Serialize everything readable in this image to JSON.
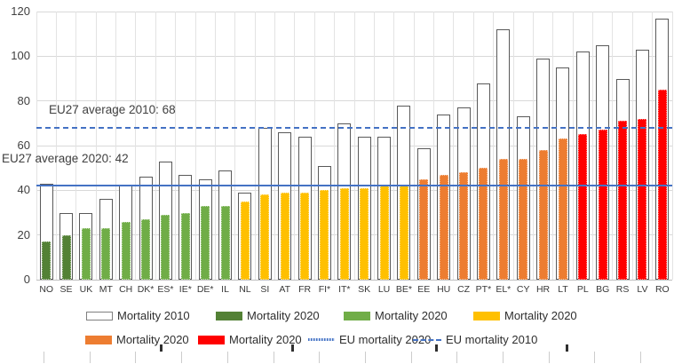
{
  "chart_data": {
    "type": "bar",
    "title": "",
    "categories": [
      "NO",
      "SE",
      "UK",
      "MT",
      "CH",
      "DK*",
      "ES*",
      "IE*",
      "DE*",
      "IL",
      "NL",
      "SI",
      "AT",
      "FR",
      "FI*",
      "IT*",
      "SK",
      "LU",
      "BE*",
      "EE",
      "HU",
      "CZ",
      "PT*",
      "EL*",
      "CY",
      "HR",
      "LT",
      "PL",
      "BG",
      "RS",
      "LV",
      "RO"
    ],
    "series": [
      {
        "name": "Mortality 2010",
        "style": "outline",
        "values": [
          43,
          30,
          30,
          36,
          42,
          46,
          53,
          47,
          45,
          49,
          39,
          68,
          66,
          64,
          51,
          70,
          64,
          64,
          78,
          59,
          74,
          77,
          88,
          112,
          73,
          99,
          95,
          102,
          105,
          90,
          103,
          117
        ]
      },
      {
        "name": "Mortality 2020",
        "style": "filled",
        "values": [
          17,
          20,
          23,
          23,
          26,
          27,
          29,
          30,
          33,
          33,
          35,
          38,
          39,
          39,
          40,
          41,
          41,
          42,
          42,
          45,
          47,
          48,
          50,
          54,
          54,
          58,
          63,
          65,
          67,
          71,
          72,
          85
        ],
        "color_group_per_bar": [
          "darkgreen",
          "darkgreen",
          "green",
          "green",
          "green",
          "green",
          "green",
          "green",
          "green",
          "green",
          "yellow",
          "yellow",
          "yellow",
          "yellow",
          "yellow",
          "yellow",
          "yellow",
          "yellow",
          "yellow",
          "orange",
          "orange",
          "orange",
          "orange",
          "orange",
          "orange",
          "orange",
          "orange",
          "red",
          "red",
          "red",
          "red",
          "red"
        ]
      }
    ],
    "reference_lines": [
      {
        "name": "EU mortality 2010",
        "value": 68,
        "style": "dashed",
        "annotation": "EU27 average 2010: 68"
      },
      {
        "name": "EU mortality 2020",
        "value": 42,
        "style": "solid",
        "annotation": "EU27 average 2020: 42"
      }
    ],
    "ylim": [
      0,
      120
    ],
    "yticks": [
      0,
      20,
      40,
      60,
      80,
      100,
      120
    ],
    "grid": "both",
    "legend_position": "bottom"
  },
  "legend": {
    "rows": [
      [
        {
          "label": "Mortality 2010",
          "swatch": "outline"
        },
        {
          "label": "Mortality 2020",
          "swatch": "darkgreen"
        },
        {
          "label": "Mortality 2020",
          "swatch": "green"
        },
        {
          "label": "Mortality 2020",
          "swatch": "yellow"
        }
      ],
      [
        {
          "label": "Mortality 2020",
          "swatch": "orange"
        },
        {
          "label": "Mortality 2020",
          "swatch": "red"
        },
        {
          "label": "EU mortality 2020",
          "swatch": "solid-line"
        },
        {
          "label": "EU mortality 2010",
          "swatch": "dashed-line"
        }
      ]
    ]
  },
  "colors": {
    "darkgreen": "#538135",
    "green": "#70ad47",
    "yellow": "#ffc000",
    "orange": "#ed7d31",
    "red": "#ff0000",
    "blue": "#4472c4",
    "bar_outline": "#595959",
    "grid": "#d9d9d9",
    "text": "#404040"
  }
}
